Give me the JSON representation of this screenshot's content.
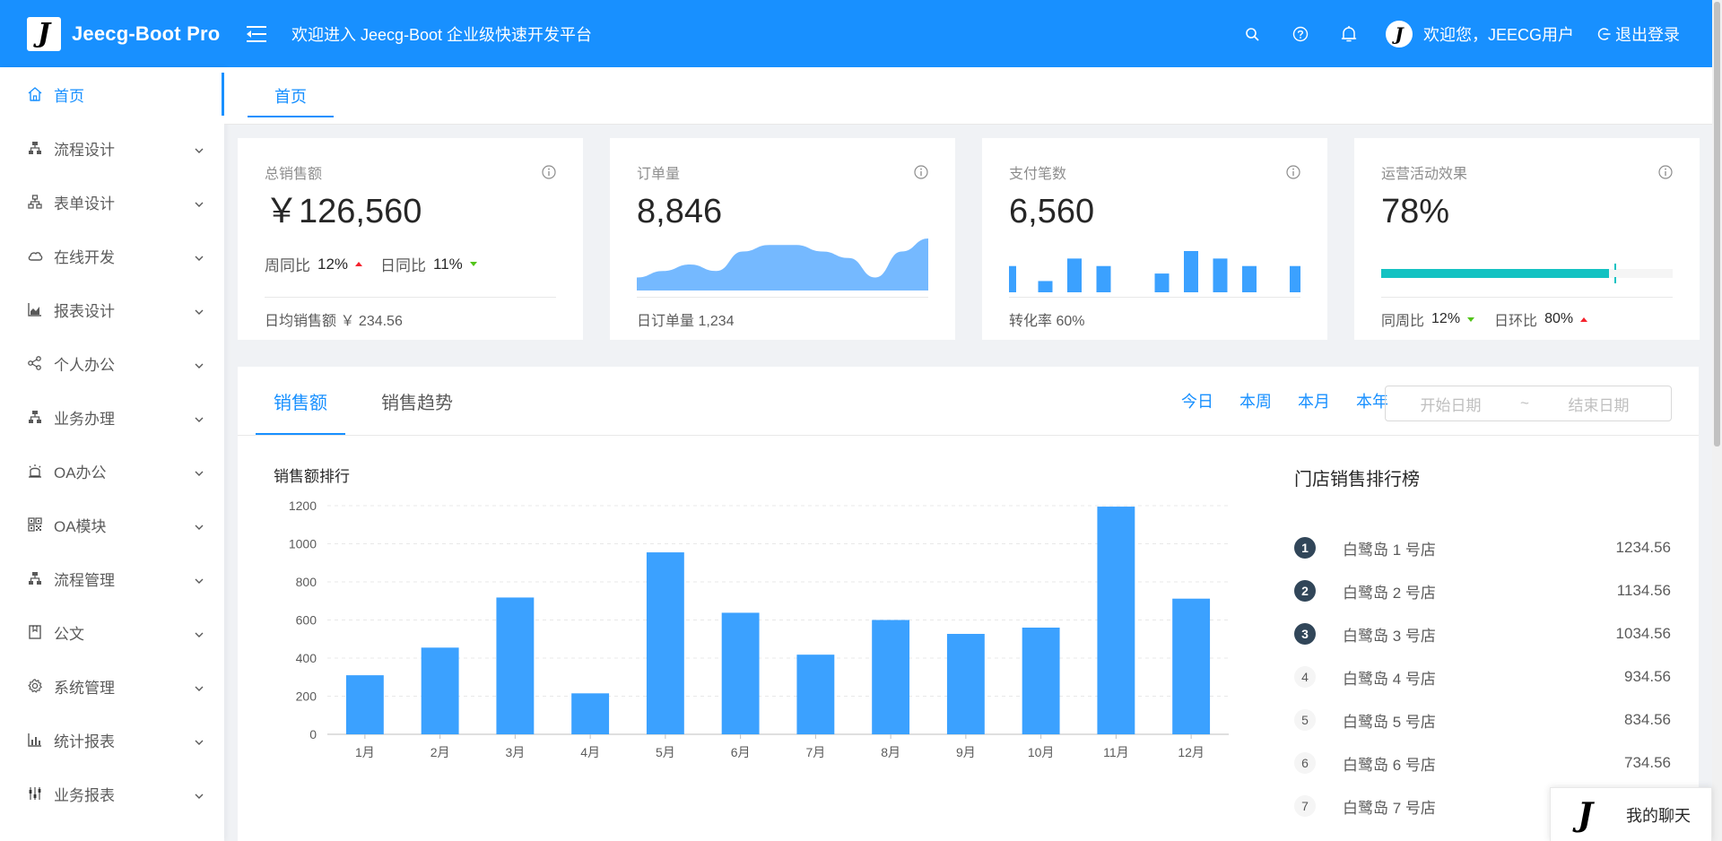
{
  "header": {
    "logo_letter": "J",
    "app_name": "Jeecg-Boot Pro",
    "welcome": "欢迎进入 Jeecg-Boot 企业级快速开发平台",
    "user_avatar_letter": "J",
    "user_greeting": "欢迎您，JEECG用户",
    "logout_label": "退出登录",
    "bg_color": "#1890ff"
  },
  "sidebar": {
    "items": [
      {
        "label": "首页",
        "icon": "home-icon",
        "active": true
      },
      {
        "label": "流程设计",
        "icon": "flow-icon"
      },
      {
        "label": "表单设计",
        "icon": "tree-icon"
      },
      {
        "label": "在线开发",
        "icon": "cloud-icon"
      },
      {
        "label": "报表设计",
        "icon": "area-chart-icon"
      },
      {
        "label": "个人办公",
        "icon": "share-icon"
      },
      {
        "label": "业务办理",
        "icon": "flow-icon"
      },
      {
        "label": "OA办公",
        "icon": "alert-icon"
      },
      {
        "label": "OA模块",
        "icon": "qrcode-icon"
      },
      {
        "label": "流程管理",
        "icon": "flow-icon"
      },
      {
        "label": "公文",
        "icon": "book-icon"
      },
      {
        "label": "系统管理",
        "icon": "setting-icon"
      },
      {
        "label": "统计报表",
        "icon": "bar-chart-icon"
      },
      {
        "label": "业务报表",
        "icon": "sliders-icon"
      }
    ]
  },
  "tabs": [
    {
      "label": "首页",
      "active": true
    }
  ],
  "cards": {
    "total_sales": {
      "title": "总销售额",
      "value": "￥126,560",
      "wow_label": "周同比",
      "wow_value": "12%",
      "dod_label": "日同比",
      "dod_value": "11%",
      "footer_label": "日均销售额",
      "footer_value": "￥ 234.56"
    },
    "orders": {
      "title": "订单量",
      "value": "8,846",
      "footer_label": "日订单量",
      "footer_value": "1,234",
      "area_color": "#75b9ff"
    },
    "payments": {
      "title": "支付笔数",
      "value": "6,560",
      "footer_label": "转化率",
      "footer_value": "60%",
      "bar_color": "#3ba1ff"
    },
    "ops": {
      "title": "运营活动效果",
      "value": "78%",
      "progress": 78,
      "target": 80,
      "progress_color": "#13c2c2",
      "wow_label": "同周比",
      "wow_value": "12%",
      "mom_label": "日环比",
      "mom_value": "80%"
    }
  },
  "sales": {
    "tabs": [
      {
        "label": "销售额",
        "active": true
      },
      {
        "label": "销售趋势"
      }
    ],
    "ranges": [
      "今日",
      "本周",
      "本月",
      "本年"
    ],
    "start_placeholder": "开始日期",
    "separator": "~",
    "end_placeholder": "结束日期",
    "chart_title": "销售额排行",
    "ranking_title": "门店销售排行榜",
    "ranking": [
      {
        "rank": "1",
        "name": "白鹭岛 1 号店",
        "value": "1234.56"
      },
      {
        "rank": "2",
        "name": "白鹭岛 2 号店",
        "value": "1134.56"
      },
      {
        "rank": "3",
        "name": "白鹭岛 3 号店",
        "value": "1034.56"
      },
      {
        "rank": "4",
        "name": "白鹭岛 4 号店",
        "value": "934.56"
      },
      {
        "rank": "5",
        "name": "白鹭岛 5 号店",
        "value": "834.56"
      },
      {
        "rank": "6",
        "name": "白鹭岛 6 号店",
        "value": "734.56"
      },
      {
        "rank": "7",
        "name": "白鹭岛 7 号店",
        "value": ""
      }
    ]
  },
  "chat": {
    "logo_letter": "J",
    "label": "我的聊天"
  },
  "chart_data": [
    {
      "type": "bar",
      "title": "销售额排行",
      "categories": [
        "1月",
        "2月",
        "3月",
        "4月",
        "5月",
        "6月",
        "7月",
        "8月",
        "9月",
        "10月",
        "11月",
        "12月"
      ],
      "values": [
        310,
        455,
        718,
        215,
        955,
        638,
        418,
        600,
        527,
        560,
        1195,
        712
      ],
      "ylim": [
        0,
        1200
      ],
      "yticks": [
        0,
        200,
        400,
        600,
        800,
        1000,
        1200
      ],
      "grid": true,
      "color": "#3ba1ff"
    },
    {
      "type": "area",
      "values": [
        2,
        3,
        4,
        3,
        6,
        7,
        7,
        6,
        5,
        2,
        6,
        8
      ],
      "ylim": [
        0,
        8
      ],
      "color": "#75b9ff"
    },
    {
      "type": "bar",
      "values": [
        7,
        3,
        9,
        7,
        0,
        5,
        11,
        9,
        7,
        7
      ],
      "ylim": [
        0,
        11
      ],
      "color": "#3ba1ff"
    }
  ]
}
